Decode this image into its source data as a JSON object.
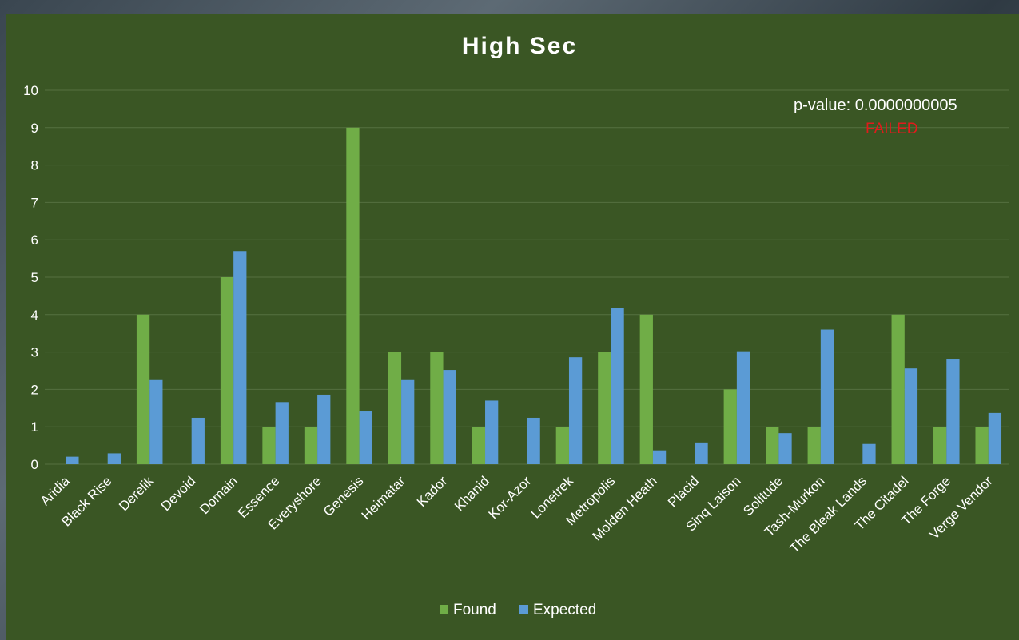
{
  "chart_data": {
    "type": "bar",
    "title": "High Sec",
    "xlabel": "",
    "ylabel": "",
    "ylim": [
      0,
      10
    ],
    "yticks": [
      "0",
      "1",
      "2",
      "3",
      "4",
      "5",
      "6",
      "7",
      "8",
      "9",
      "10"
    ],
    "grid": true,
    "legend_position": "bottom",
    "categories": [
      "Aridia",
      "Black Rise",
      "Derelik",
      "Devoid",
      "Domain",
      "Essence",
      "Everyshore",
      "Genesis",
      "Heimatar",
      "Kador",
      "Khanid",
      "Kor-Azor",
      "Lonetrek",
      "Metropolis",
      "Molden Heath",
      "Placid",
      "Sinq Laison",
      "Solitude",
      "Tash-Murkon",
      "The Bleak Lands",
      "The Citadel",
      "The Forge",
      "Verge Vendor"
    ],
    "series": [
      {
        "name": "Found",
        "color": "#70ad47",
        "values": [
          0,
          0,
          4,
          0,
          5,
          1,
          1,
          9,
          3,
          3,
          1,
          0,
          1,
          3,
          4,
          0,
          2,
          1,
          1,
          0,
          4,
          1,
          1
        ]
      },
      {
        "name": "Expected",
        "color": "#5b9bd5",
        "values": [
          0.2,
          0.29,
          2.27,
          1.24,
          5.7,
          1.66,
          1.86,
          1.41,
          2.27,
          2.52,
          1.7,
          1.24,
          2.86,
          4.18,
          0.37,
          0.58,
          3.02,
          0.83,
          3.6,
          0.54,
          2.56,
          2.82,
          1.37
        ]
      }
    ],
    "annotations": {
      "p_value": "p-value: 0.0000000005",
      "status": "FAILED"
    }
  }
}
